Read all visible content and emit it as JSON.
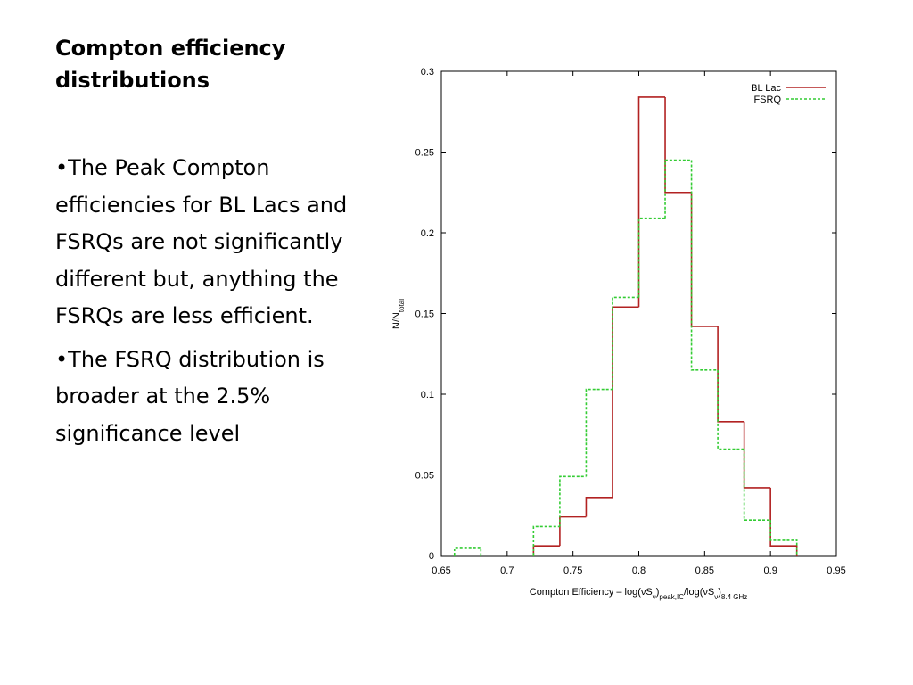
{
  "slide": {
    "title": "Compton efficiency distributions",
    "bullets": [
      "•The Peak Compton efficiencies for BL Lacs and FSRQs are not significantly different but, anything the FSRQs are less efficient.",
      "•The FSRQ distribution is broader at the 2.5% significance level"
    ]
  },
  "chart_data": {
    "type": "histogram",
    "title": "",
    "xlabel": "Compton Efficiency – log(νS_ν)peak,IC/log(νS_ν)8.4 GHz",
    "xlabel_parts": {
      "prefix": "Compton Efficiency – log(νS",
      "sub1": "ν",
      "mid1": ")",
      "sub2": "peak,IC",
      "mid2": "/log(νS",
      "sub3": "ν",
      "mid3": ")",
      "sub4": "8.4 GHz"
    },
    "ylabel": "N/Ntotal",
    "ylabel_parts": {
      "main": "N/N",
      "sub": "total"
    },
    "xlim": [
      0.65,
      0.95
    ],
    "ylim": [
      0,
      0.3
    ],
    "xticks": [
      "0.65",
      "0.7",
      "0.75",
      "0.8",
      "0.85",
      "0.9",
      "0.95"
    ],
    "yticks": [
      "0",
      "0.05",
      "0.1",
      "0.15",
      "0.2",
      "0.25",
      "0.3"
    ],
    "bin_edges": [
      0.66,
      0.68,
      0.7,
      0.72,
      0.74,
      0.76,
      0.78,
      0.8,
      0.82,
      0.84,
      0.86,
      0.88,
      0.9,
      0.92
    ],
    "series": [
      {
        "name": "BL Lac",
        "color": "#b22222",
        "style": "solid",
        "values": [
          0,
          0,
          0,
          0.006,
          0.024,
          0.036,
          0.154,
          0.284,
          0.225,
          0.142,
          0.083,
          0.042,
          0.006
        ]
      },
      {
        "name": "FSRQ",
        "color": "#33cc33",
        "style": "dashed",
        "values": [
          0.005,
          0,
          0,
          0.018,
          0.049,
          0.103,
          0.16,
          0.209,
          0.245,
          0.115,
          0.066,
          0.022,
          0.01
        ]
      }
    ],
    "legend_position": "top-right",
    "grid": false
  }
}
